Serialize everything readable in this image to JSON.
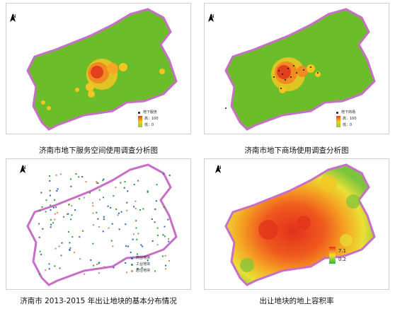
{
  "panels": [
    {
      "id": "underground-service",
      "north_label": "N",
      "legend_title": "地下服务",
      "legend_high": "高：100",
      "legend_low": "低：0",
      "caption": "济南市地下服务空间使用调查分析图"
    },
    {
      "id": "underground-mall",
      "north_label": "N",
      "legend_title": "地下商场",
      "legend_high": "高：100",
      "legend_low": "低：0",
      "caption": "济南市地下商场使用调查分析图"
    },
    {
      "id": "land-parcels",
      "north_label": "N",
      "legend_items": [
        "商业地块",
        "工业地块",
        "居住地块"
      ],
      "caption": "济南市 2013-2015 年出让地块的基本分布情况"
    },
    {
      "id": "floor-area-ratio",
      "north_label": "N",
      "legend_max": "7.1",
      "legend_min": "0.2",
      "caption": "出让地块的地上容积率"
    }
  ],
  "colors": {
    "land": "#6cbd2a",
    "outline": "#c86ec6",
    "hot": "#e23a1c",
    "warm": "#f5a623",
    "commercial": "#2b5fb8",
    "industrial": "#2e9e3c",
    "residential": "#c98a6a"
  }
}
